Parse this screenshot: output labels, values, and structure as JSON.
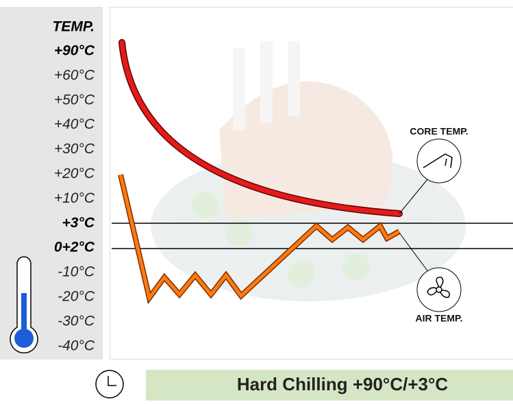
{
  "axis": {
    "title": "TEMP.",
    "labels": [
      "+90°C",
      "+60°C",
      "+50°C",
      "+40°C",
      "+30°C",
      "+20°C",
      "+10°C",
      "+3°C",
      "0+2°C",
      "-10°C",
      "-20°C",
      "-30°C",
      "-40°C"
    ]
  },
  "curves": {
    "core": "CORE TEMP.",
    "air": "AIR TEMP."
  },
  "banner": {
    "title": "Hard Chilling +90°C/+3°C"
  }
}
